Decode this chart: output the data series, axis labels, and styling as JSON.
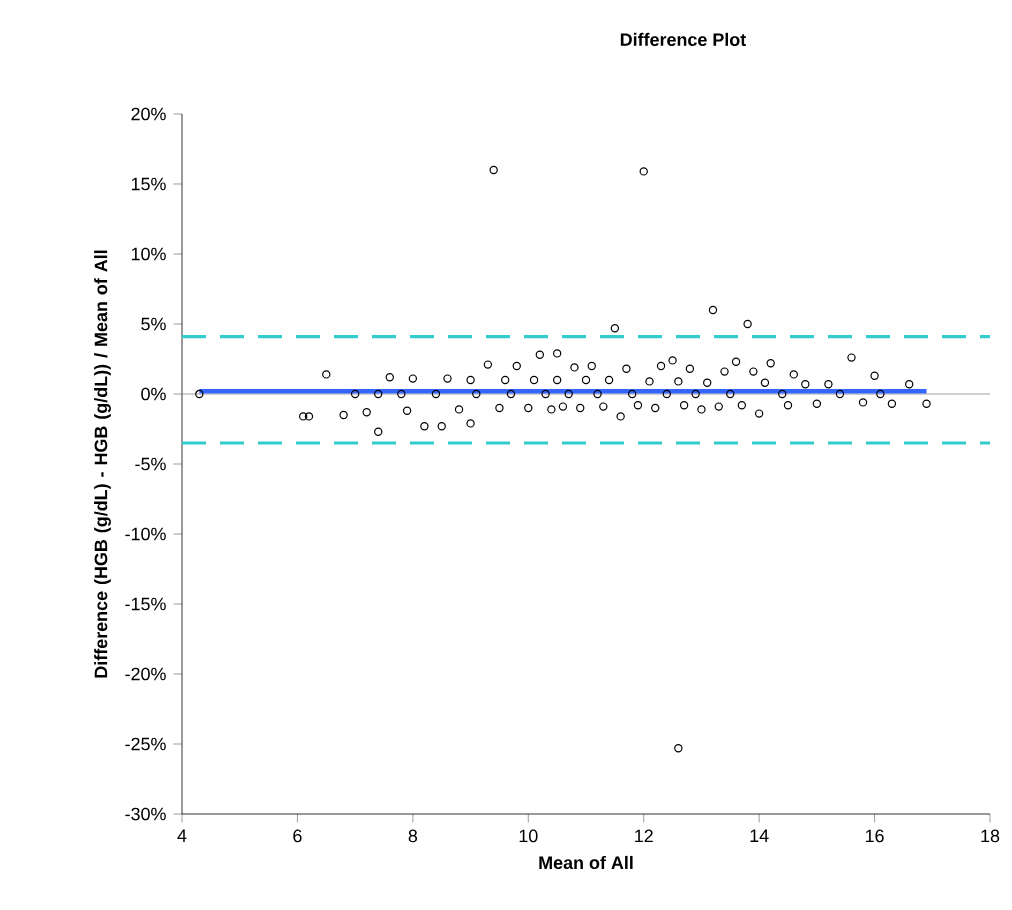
{
  "chart_data": {
    "type": "scatter",
    "title": "Difference Plot",
    "xlabel": "Mean of All",
    "ylabel": "Difference (HGB (g/dL) - HGB (g/dL)) / Mean of All",
    "xlim": [
      4,
      18
    ],
    "xticks": [
      4,
      6,
      8,
      10,
      12,
      14,
      16,
      18
    ],
    "ylim": [
      -30,
      20
    ],
    "yticks": [
      {
        "value": -30,
        "label": "-30%"
      },
      {
        "value": -25,
        "label": "-25%"
      },
      {
        "value": -20,
        "label": "-20%"
      },
      {
        "value": -15,
        "label": "-15%"
      },
      {
        "value": -10,
        "label": "-10%"
      },
      {
        "value": -5,
        "label": "-5%"
      },
      {
        "value": 0,
        "label": "0%"
      },
      {
        "value": 5,
        "label": "5%"
      },
      {
        "value": 10,
        "label": "10%"
      },
      {
        "value": 15,
        "label": "15%"
      },
      {
        "value": 20,
        "label": "20%"
      }
    ],
    "grid": false,
    "ref_lines": [
      {
        "axis": "y",
        "value": 0,
        "color": "#a0a0a0",
        "line_style": "solid"
      },
      {
        "axis": "y",
        "value": 4.1,
        "color": "#33cccc",
        "line_style": "dashed"
      },
      {
        "axis": "y",
        "value": -3.5,
        "color": "#33cccc",
        "line_style": "dashed"
      }
    ],
    "series": [
      {
        "marker": "circle",
        "color": "#000000",
        "x": [
          4.3,
          6.1,
          6.2,
          6.5,
          6.8,
          7.0,
          7.2,
          7.4,
          7.4,
          7.6,
          7.8,
          7.9,
          8.0,
          8.2,
          8.4,
          8.5,
          8.6,
          8.8,
          9.0,
          9.0,
          9.1,
          9.3,
          9.4,
          9.5,
          9.6,
          9.7,
          9.8,
          10.0,
          10.1,
          10.2,
          10.3,
          10.4,
          10.5,
          10.5,
          10.6,
          10.7,
          10.8,
          10.9,
          11.0,
          11.1,
          11.2,
          11.3,
          11.4,
          11.5,
          11.6,
          11.7,
          11.8,
          11.9,
          12.0,
          12.1,
          12.2,
          12.3,
          12.4,
          12.5,
          12.6,
          12.6,
          12.7,
          12.8,
          12.9,
          13.0,
          13.1,
          13.2,
          13.3,
          13.4,
          13.5,
          13.6,
          13.7,
          13.8,
          13.9,
          14.0,
          14.1,
          14.2,
          14.4,
          14.5,
          14.6,
          14.8,
          15.0,
          15.2,
          15.4,
          15.6,
          15.8,
          16.0,
          16.1,
          16.3,
          16.6,
          16.9
        ],
        "values": [
          0,
          -1.6,
          -1.6,
          1.4,
          -1.5,
          0,
          -1.3,
          -2.7,
          0,
          1.2,
          0,
          -1.2,
          1.1,
          -2.3,
          0,
          -2.3,
          1.1,
          -1.1,
          -2.1,
          1.0,
          0,
          2.1,
          16.0,
          -1.0,
          1.0,
          0,
          2.0,
          -1.0,
          1.0,
          2.8,
          0,
          -1.1,
          2.9,
          1.0,
          -0.9,
          0,
          1.9,
          -1.0,
          1.0,
          2.0,
          0,
          -0.9,
          1.0,
          4.7,
          -1.6,
          1.8,
          0,
          -0.8,
          15.9,
          0.9,
          -1.0,
          2.0,
          0,
          2.4,
          -25.3,
          0.9,
          -0.8,
          1.8,
          0,
          -1.1,
          0.8,
          6.0,
          -0.9,
          1.6,
          0,
          2.3,
          -0.8,
          5.0,
          1.6,
          -1.4,
          0.8,
          2.2,
          0,
          -0.8,
          1.4,
          0.7,
          -0.7,
          0.7,
          0,
          2.6,
          -0.6,
          1.3,
          0,
          -0.7,
          0.7,
          -0.7
        ]
      },
      {
        "type": "line",
        "marker": "none",
        "color": "#3366ff",
        "x": [
          4.3,
          16.9
        ],
        "values": [
          0.2,
          0.2
        ]
      }
    ]
  }
}
